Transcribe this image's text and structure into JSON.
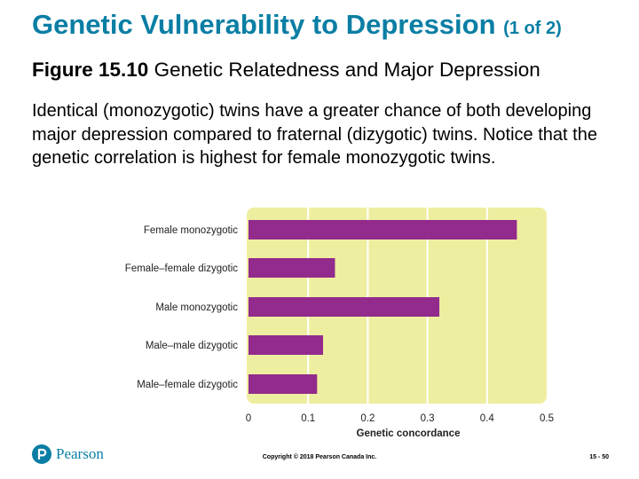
{
  "slide": {
    "title": "Genetic Vulnerability to Depression",
    "title_part": "(1 of 2)",
    "figure_label": "Figure 15.10",
    "figure_caption": "Genetic Relatedness and Major Depression",
    "description": "Identical (monozygotic) twins have a greater chance of both developing major depression compared to fraternal (dizygotic) twins. Notice that the genetic correlation is highest for female monozygotic twins.",
    "footer": {
      "brand": "Pearson",
      "copyright": "Copyright © 2018 Pearson Canada Inc.",
      "page": "15 - 50"
    }
  },
  "colors": {
    "title": "#0a7ea4",
    "bar": "#922b8c",
    "plot_bg": "#eeeea0",
    "gridline": "#ffffff"
  },
  "chart_data": {
    "type": "bar",
    "orientation": "horizontal",
    "categories": [
      "Female monozygotic",
      "Female–female dizygotic",
      "Male monozygotic",
      "Male–male dizygotic",
      "Male–female dizygotic"
    ],
    "values": [
      0.45,
      0.145,
      0.32,
      0.125,
      0.115
    ],
    "xlabel": "Genetic concordance",
    "ylabel": "",
    "xlim": [
      0,
      0.5
    ],
    "xticks": [
      "0",
      "0.1",
      "0.2",
      "0.3",
      "0.4",
      "0.5"
    ],
    "grid": true
  }
}
